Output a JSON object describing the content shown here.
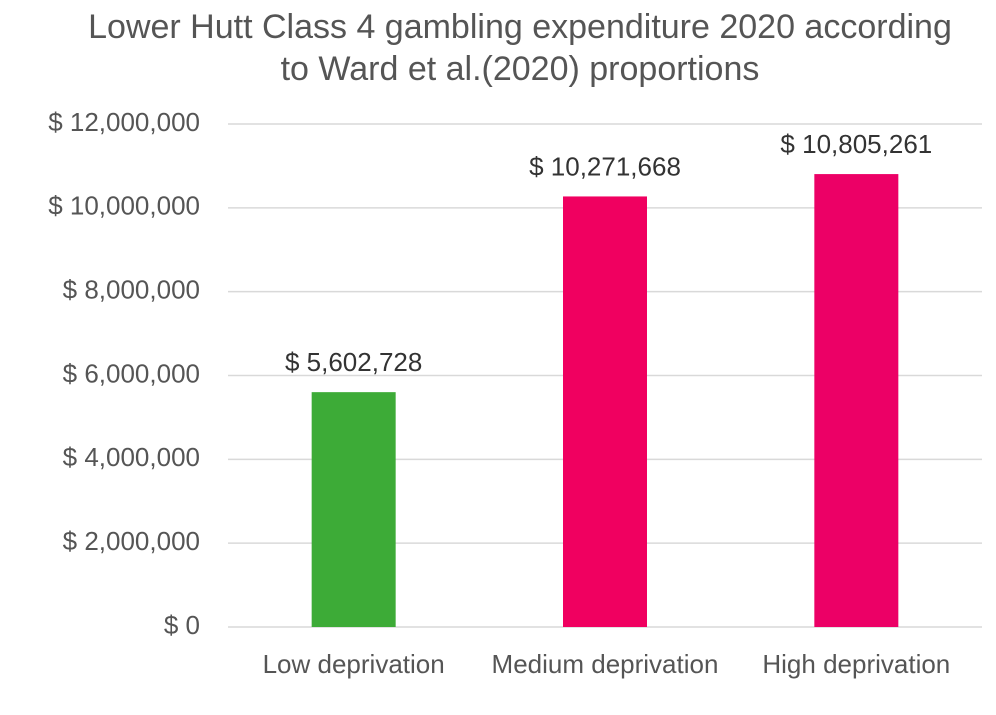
{
  "chart_data": {
    "type": "bar",
    "title": "Lower Hutt Class 4 gambling expenditure 2020 according to Ward et al.(2020) proportions",
    "categories": [
      "Low deprivation",
      "Medium deprivation",
      "High deprivation"
    ],
    "values": [
      5602728,
      10271668,
      10805261
    ],
    "value_labels": [
      "$ 5,602,728",
      "$ 10,271,668",
      "$ 10,805,261"
    ],
    "colors": [
      "#3dab37",
      "#f00060",
      "#ec0066"
    ],
    "ylim": [
      0,
      12000000
    ],
    "yticks": [
      {
        "value": 0,
        "label": "$ 0"
      },
      {
        "value": 2000000,
        "label": "$ 2,000,000"
      },
      {
        "value": 4000000,
        "label": "$ 4,000,000"
      },
      {
        "value": 6000000,
        "label": "$ 6,000,000"
      },
      {
        "value": 8000000,
        "label": "$ 8,000,000"
      },
      {
        "value": 10000000,
        "label": "$ 10,000,000"
      },
      {
        "value": 12000000,
        "label": "$ 12,000,000"
      }
    ],
    "grid": true
  }
}
